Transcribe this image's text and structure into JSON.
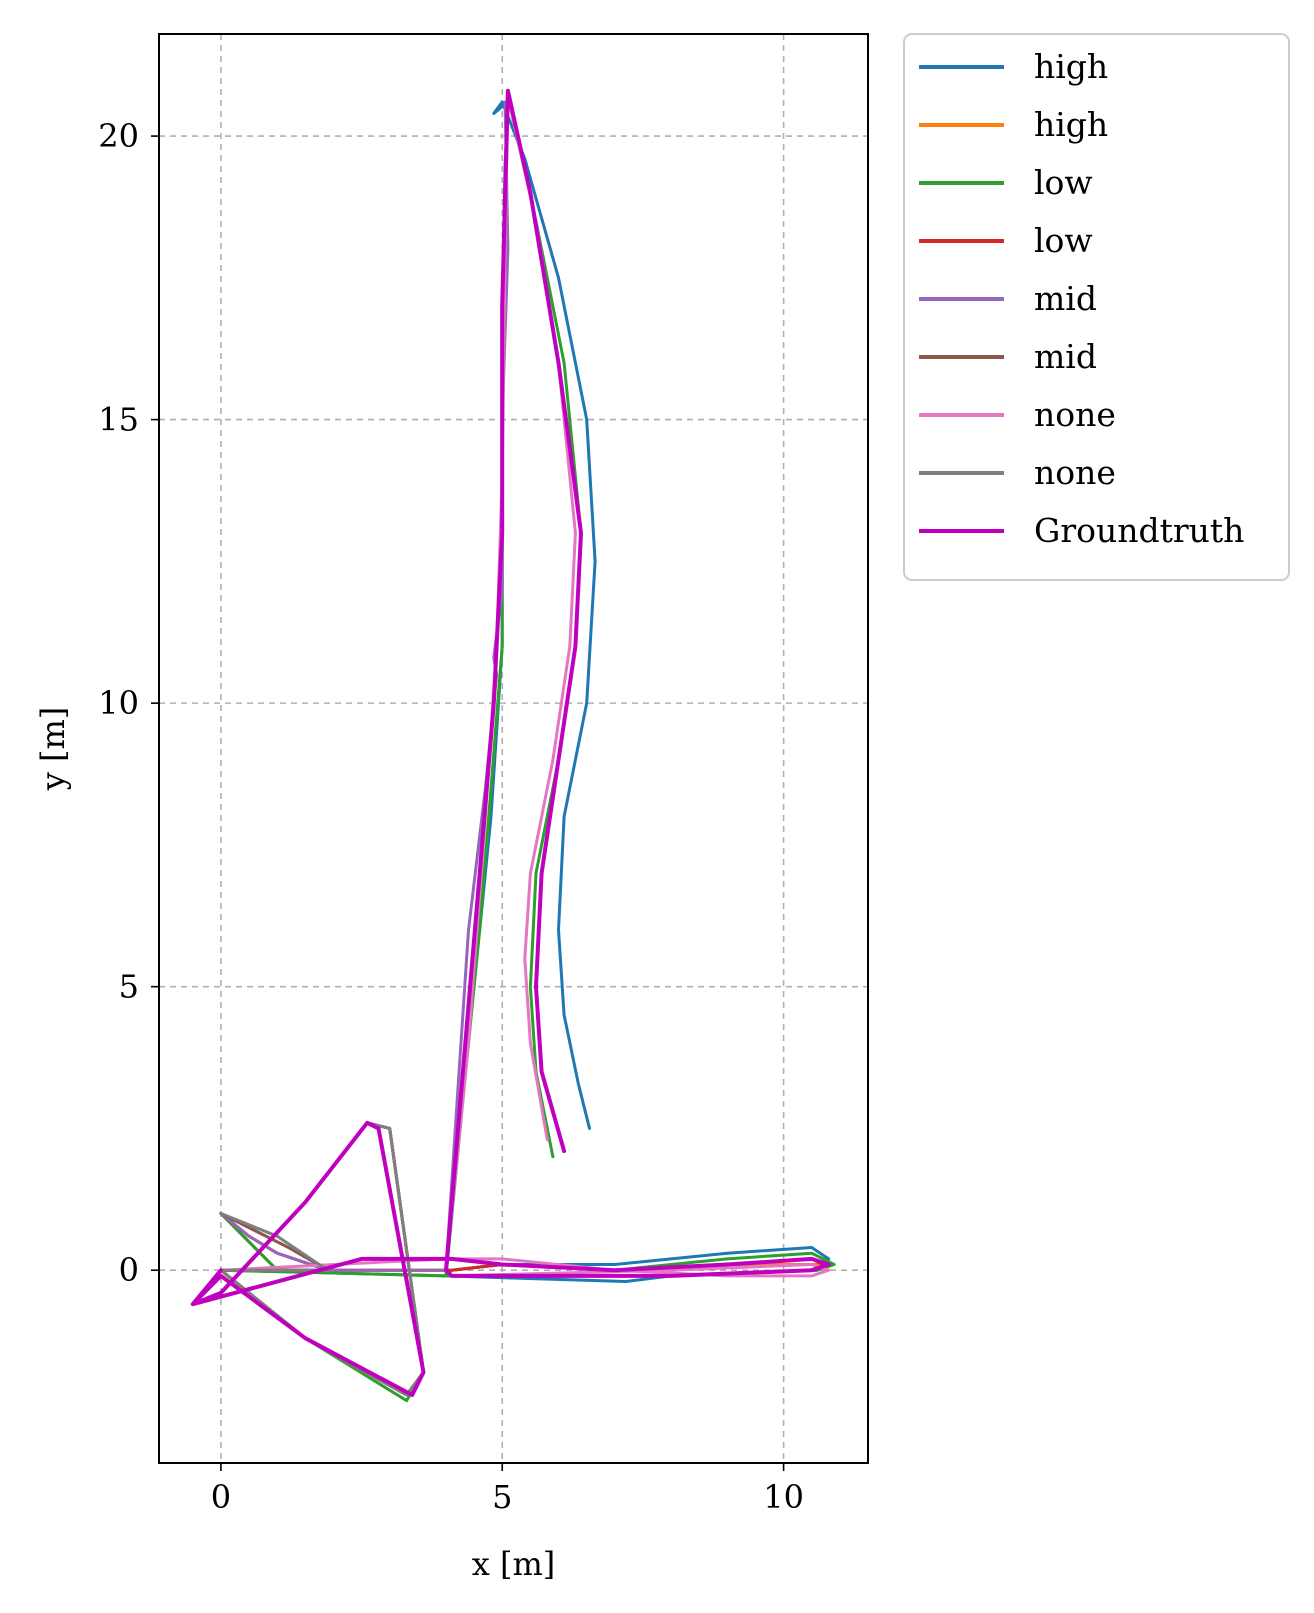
{
  "chart_data": {
    "type": "line",
    "title": "",
    "xlabel": "x [m]",
    "ylabel": "y [m]",
    "xlim": [
      -1.1,
      11.5
    ],
    "ylim": [
      -3.4,
      21.8
    ],
    "xticks": [
      0,
      5,
      10
    ],
    "yticks": [
      0,
      5,
      10,
      15,
      20
    ],
    "xtick_labels": [
      "0",
      "5",
      "10"
    ],
    "ytick_labels": [
      "0",
      "5",
      "10",
      "15",
      "20"
    ],
    "grid": true,
    "legend_position": "outside-upper-right",
    "series": [
      {
        "name": "high",
        "color": "#1f77b4",
        "x": [
          0,
          0.5,
          1.0,
          1.9,
          1.0,
          0,
          -0.5,
          0,
          1.5,
          2.6,
          3.0,
          3.6,
          3.3,
          1.5,
          0,
          4.0,
          4.1,
          5.0,
          7.0,
          9.0,
          10.5,
          10.8,
          10.6,
          8.0,
          7.2,
          4.0,
          4.2,
          4.4,
          4.6,
          4.8,
          4.9,
          5.0,
          5.0,
          5.0,
          5.05,
          5.1,
          4.85,
          5.0,
          5.4,
          6.0,
          6.5,
          6.65,
          6.5,
          6.1,
          6.0,
          6.1,
          6.35,
          6.55
        ],
        "y": [
          1.0,
          0.5,
          0.0,
          0.0,
          0.0,
          0.0,
          -0.6,
          -0.4,
          1.2,
          2.6,
          2.5,
          -1.8,
          -2.2,
          -1.2,
          0.0,
          -0.1,
          0.0,
          0.1,
          0.1,
          0.3,
          0.4,
          0.2,
          0.0,
          -0.1,
          -0.2,
          -0.1,
          2.0,
          4.5,
          6.0,
          8.0,
          9.5,
          11.0,
          14.0,
          17.0,
          19.5,
          20.6,
          20.4,
          20.6,
          19.6,
          17.5,
          15.0,
          12.5,
          10.0,
          8.0,
          6.0,
          4.5,
          3.3,
          2.5
        ]
      },
      {
        "name": "high",
        "color": "#ff7f0e",
        "x": [
          0,
          0.5,
          1.0,
          1.9,
          1.0,
          0,
          -0.5,
          0,
          1.5,
          2.6,
          3.0,
          3.6,
          3.3,
          1.5,
          0,
          4.0,
          4.1,
          5.0,
          7.0,
          9.0,
          10.5,
          10.8
        ],
        "y": [
          1.0,
          0.5,
          0.0,
          0.0,
          0.0,
          0.0,
          -0.6,
          -0.4,
          1.2,
          2.6,
          2.5,
          -1.8,
          -2.2,
          -1.2,
          0.0,
          0.0,
          0.0,
          0.1,
          0.0,
          0.1,
          0.1,
          0.1
        ]
      },
      {
        "name": "low",
        "color": "#2ca02c",
        "x": [
          0,
          0.5,
          1.0,
          1.9,
          1.0,
          0,
          -0.5,
          0,
          1.5,
          2.6,
          3.0,
          3.6,
          3.3,
          1.5,
          0,
          4.0,
          4.1,
          5.0,
          7.0,
          9.0,
          10.5,
          10.9,
          10.6,
          8.0,
          4.0,
          4.3,
          4.6,
          4.8,
          5.0,
          5.0,
          5.05,
          5.1,
          5.6,
          6.1,
          6.4,
          6.3,
          6.0,
          5.6,
          5.5,
          5.6,
          5.9
        ],
        "y": [
          1.0,
          0.5,
          0.0,
          0.0,
          0.0,
          0.0,
          -0.6,
          -0.4,
          1.2,
          2.6,
          2.5,
          -1.8,
          -2.3,
          -1.2,
          0.0,
          -0.1,
          0.0,
          0.1,
          0.0,
          0.2,
          0.3,
          0.1,
          0.0,
          -0.1,
          -0.1,
          3.0,
          6.0,
          8.5,
          11.0,
          15.0,
          19.0,
          20.7,
          18.5,
          16.0,
          13.0,
          11.0,
          9.0,
          7.0,
          5.0,
          3.5,
          2.0
        ]
      },
      {
        "name": "low",
        "color": "#d62728",
        "x": [
          0,
          0.5,
          1.0,
          1.9,
          1.0,
          0,
          -0.5,
          0,
          1.5,
          2.6,
          3.0,
          3.6,
          3.3,
          1.5,
          0,
          4.0,
          4.1,
          5.0,
          7.0,
          9.0,
          10.5,
          10.7
        ],
        "y": [
          1.0,
          0.6,
          0.3,
          0.0,
          0.0,
          0.0,
          -0.6,
          -0.4,
          1.2,
          2.6,
          2.5,
          -1.8,
          -2.2,
          -1.2,
          0.0,
          0.0,
          0.0,
          0.1,
          0.0,
          0.1,
          0.2,
          0.1
        ]
      },
      {
        "name": "mid",
        "color": "#9467bd",
        "x": [
          0,
          0.5,
          1.0,
          1.9,
          1.0,
          0,
          -0.5,
          0,
          1.5,
          2.6,
          3.0,
          3.6,
          3.3,
          1.5,
          0,
          4.0,
          4.2,
          4.4,
          4.7,
          4.8,
          4.9,
          4.85,
          5.0,
          5.0,
          5.1,
          5.05
        ],
        "y": [
          1.0,
          0.6,
          0.3,
          0.0,
          0.0,
          0.0,
          -0.6,
          -0.4,
          1.2,
          2.6,
          2.5,
          -1.8,
          -2.2,
          -1.2,
          0.0,
          0.0,
          3.0,
          6.0,
          8.5,
          9.5,
          10.5,
          10.8,
          12.0,
          15.0,
          18.0,
          20.6
        ]
      },
      {
        "name": "mid",
        "color": "#8c564b",
        "x": [
          0,
          0.6,
          1.2,
          1.9,
          1.0,
          0,
          -0.5,
          0,
          1.5,
          2.6,
          3.0,
          3.6,
          3.3,
          1.5,
          0
        ],
        "y": [
          1.0,
          0.7,
          0.4,
          0.0,
          0.0,
          0.0,
          -0.6,
          -0.4,
          1.2,
          2.6,
          2.5,
          -1.8,
          -2.2,
          -1.2,
          0.0
        ]
      },
      {
        "name": "none",
        "color": "#e377c2",
        "x": [
          0,
          -0.5,
          0,
          1.5,
          2.6,
          3.0,
          3.6,
          3.3,
          1.5,
          0,
          4.0,
          5.0,
          7.0,
          9.0,
          10.5,
          10.8,
          10.5,
          8.0,
          4.1,
          4.0,
          4.4,
          4.7,
          4.9,
          5.0,
          5.05,
          5.1,
          5.6,
          6.0,
          6.3,
          6.2,
          5.9,
          5.5,
          5.4,
          5.5,
          5.8
        ],
        "y": [
          0.0,
          -0.6,
          -0.4,
          1.2,
          2.6,
          2.5,
          -1.8,
          -2.2,
          -1.2,
          0.0,
          0.2,
          0.2,
          0.0,
          -0.1,
          -0.1,
          0.0,
          0.1,
          0.0,
          -0.1,
          0.0,
          4.0,
          8.0,
          11.0,
          14.0,
          18.0,
          20.7,
          18.5,
          16.0,
          13.0,
          11.0,
          9.0,
          7.0,
          5.5,
          4.0,
          2.3
        ]
      },
      {
        "name": "none",
        "color": "#7f7f7f",
        "x": [
          0,
          0.5,
          1.0,
          1.9,
          1.0,
          0,
          -0.5,
          0,
          1.5,
          2.6,
          3.0,
          3.6,
          3.3,
          1.5,
          0
        ],
        "y": [
          1.0,
          0.8,
          0.6,
          0.0,
          0.0,
          0.0,
          -0.6,
          -0.4,
          1.2,
          2.6,
          2.5,
          -1.8,
          -2.2,
          -1.2,
          0.0
        ]
      },
      {
        "name": "Groundtruth",
        "color": "#bf00bf",
        "x": [
          0,
          -0.5,
          0,
          1.5,
          2.6,
          2.8,
          3.6,
          3.4,
          1.5,
          0,
          -0.5,
          2.5,
          4.0,
          4.1,
          5.0,
          7.0,
          9.0,
          10.5,
          10.8,
          10.5,
          8.0,
          4.1,
          4.0,
          4.3,
          4.6,
          4.85,
          5.0,
          5.0,
          5.1,
          5.5,
          6.0,
          6.4,
          6.3,
          6.0,
          5.7,
          5.6,
          5.7,
          6.1
        ],
        "y": [
          0.0,
          -0.6,
          -0.4,
          1.2,
          2.6,
          2.5,
          -1.8,
          -2.2,
          -1.2,
          -0.1,
          -0.6,
          0.2,
          0.2,
          0.2,
          0.1,
          0.0,
          0.1,
          0.2,
          0.1,
          0.0,
          -0.1,
          -0.1,
          0.0,
          3.5,
          7.0,
          10.0,
          13.0,
          17.0,
          20.8,
          19.0,
          16.0,
          13.0,
          11.0,
          9.0,
          7.0,
          5.0,
          3.5,
          2.1
        ]
      }
    ]
  }
}
